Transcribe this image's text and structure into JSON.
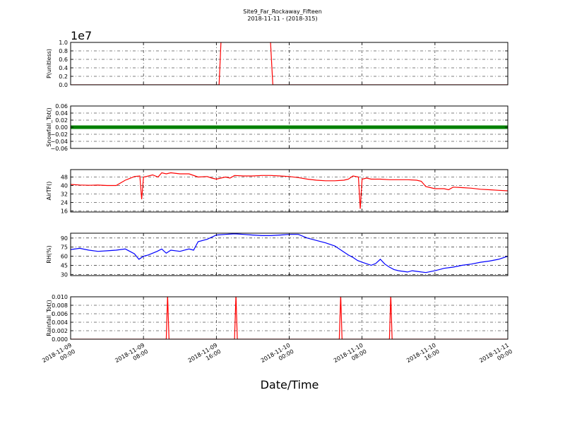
{
  "figure": {
    "title": "Site9_Far_Rockaway_Fifteen",
    "subtitle": "2018-11-11 - (2018-315)",
    "xlabel": "Date/Time",
    "xticks": [
      [
        "2018-11-09",
        "00:00"
      ],
      [
        "2018-11-09",
        "08:00"
      ],
      [
        "2018-11-09",
        "16:00"
      ],
      [
        "2018-11-10",
        "00:00"
      ],
      [
        "2018-11-10",
        "08:00"
      ],
      [
        "2018-11-10",
        "16:00"
      ],
      [
        "2018-11-11",
        "00:00"
      ]
    ]
  },
  "chart_data": [
    {
      "type": "line",
      "ylabel": "P(unitless)",
      "offset_text": "1e7",
      "ylim": [
        0,
        1.0
      ],
      "yticks": [
        "0.0",
        "0.2",
        "0.4",
        "0.6",
        "0.8",
        "1.0"
      ],
      "xlim_hours": [
        0,
        48
      ],
      "grid": true,
      "color": "#ff0000",
      "x": [
        0,
        16.3,
        16.55,
        21.9,
        22.2,
        48
      ],
      "y": [
        0,
        0,
        1.2,
        1.2,
        0,
        0
      ]
    },
    {
      "type": "line",
      "ylabel": "Snowfall_Tot()",
      "ylim": [
        -0.06,
        0.06
      ],
      "yticks": [
        "−0.06",
        "−0.04",
        "−0.02",
        "0.00",
        "0.02",
        "0.04",
        "0.06"
      ],
      "xlim_hours": [
        0,
        48
      ],
      "grid": true,
      "color": "#008000",
      "x": [
        0,
        48
      ],
      "y": [
        0,
        0
      ]
    },
    {
      "type": "line",
      "ylabel": "AirTF()",
      "ylim": [
        15,
        55
      ],
      "yticks": [
        "16",
        "24",
        "32",
        "40",
        "48"
      ],
      "xlim_hours": [
        0,
        48
      ],
      "grid": true,
      "color": "#ff0000",
      "x": [
        0,
        1,
        2,
        3,
        4,
        5,
        6,
        7,
        7.6,
        7.8,
        8,
        8.3,
        9,
        9.6,
        10,
        10.5,
        11,
        12,
        13,
        14,
        15,
        15.5,
        16,
        17,
        17.5,
        18,
        19,
        20,
        21,
        22,
        23,
        24,
        25,
        26,
        27,
        28,
        29,
        30,
        30.5,
        31,
        31.6,
        31.8,
        32,
        32.5,
        33,
        34,
        35,
        36,
        37,
        38,
        38.5,
        39,
        40,
        41,
        41.5,
        42,
        43,
        44,
        45,
        46,
        47,
        48
      ],
      "y": [
        41,
        40.5,
        40.2,
        40.4,
        40,
        40,
        45,
        48.5,
        49,
        27,
        48,
        48.5,
        50,
        48,
        52,
        51,
        52,
        51,
        51,
        48,
        48.5,
        47,
        46,
        48,
        47,
        49.5,
        49,
        49,
        49.5,
        49.5,
        49,
        48.5,
        47.5,
        46,
        45,
        44.5,
        44.5,
        45,
        46,
        49,
        48,
        18,
        46,
        47,
        46,
        46,
        45.5,
        45.5,
        45.5,
        45,
        44,
        39,
        37,
        37,
        36,
        38.5,
        38,
        37.5,
        36.5,
        36,
        35.5,
        35
      ]
    },
    {
      "type": "line",
      "ylabel": "RH(%)",
      "ylim": [
        28,
        98
      ],
      "yticks": [
        "30",
        "45",
        "60",
        "75",
        "90"
      ],
      "xlim_hours": [
        0,
        48
      ],
      "grid": true,
      "color": "#0000ff",
      "x": [
        0,
        1,
        2,
        3,
        4,
        5,
        6,
        6.5,
        7,
        7.5,
        8,
        8.5,
        9,
        9.5,
        10,
        10.5,
        11,
        12,
        13,
        13.5,
        14,
        15,
        16,
        17,
        18,
        19,
        20,
        21,
        22,
        23,
        24,
        25,
        26,
        26.5,
        27,
        28,
        29,
        30,
        30.5,
        31,
        31.5,
        32,
        33,
        33.5,
        34,
        34.5,
        35,
        35.5,
        36,
        37,
        37.5,
        38,
        39,
        40,
        40.5,
        41,
        42,
        43,
        44,
        45,
        46,
        47,
        48
      ],
      "y": [
        71,
        73,
        70,
        68,
        69,
        70,
        72,
        68,
        64,
        55,
        60,
        62,
        65,
        68,
        72,
        65,
        70,
        68,
        72,
        70,
        84,
        88,
        95,
        96,
        97,
        96,
        95,
        94,
        94,
        95,
        96,
        96,
        90,
        88,
        86,
        82,
        77,
        67,
        62,
        58,
        53,
        50,
        45,
        48,
        55,
        47,
        42,
        38,
        36,
        34,
        36,
        35,
        33,
        36,
        38,
        40,
        42,
        45,
        47,
        50,
        52,
        55,
        60
      ]
    },
    {
      "type": "line",
      "ylabel": "Rainfall_Tot()",
      "ylim": [
        0,
        0.01
      ],
      "yticks": [
        "0.000",
        "0.002",
        "0.004",
        "0.006",
        "0.008",
        "0.010"
      ],
      "xlim_hours": [
        0,
        48
      ],
      "grid": true,
      "color": "#ff0000",
      "x": [
        0,
        10.5,
        10.65,
        10.8,
        18,
        18.15,
        18.3,
        29.5,
        29.65,
        29.8,
        35,
        35.15,
        35.3,
        48
      ],
      "y": [
        0,
        0,
        0.0105,
        0,
        0,
        0.0105,
        0,
        0,
        0.0105,
        0,
        0,
        0.0105,
        0,
        0
      ]
    }
  ]
}
